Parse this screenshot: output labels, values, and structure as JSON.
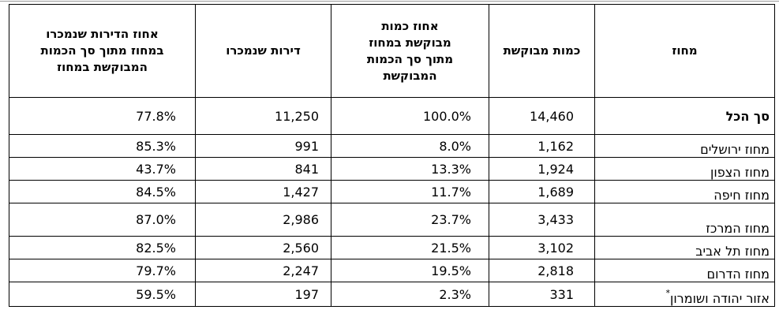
{
  "headers": {
    "pct_sold": [
      "אחוז הדירות שנמכרו",
      "במחוז מתוך סך הכמות",
      "המבוקשת במחוז"
    ],
    "sold": [
      "דירות שנמכרו"
    ],
    "pct_requested": [
      "אחוז כמות",
      "מבוקשת במחוז",
      "מתוך סך הכמות",
      "המבוקשת"
    ],
    "requested": [
      "כמות מבוקשת"
    ],
    "district": [
      "מחוז"
    ]
  },
  "rows": [
    {
      "district": "סך הכל",
      "requested": "14,460",
      "pct_requested": "100.0%",
      "sold": "11,250",
      "pct_sold": "77.8%"
    },
    {
      "district": "מחוז ירושלים",
      "requested": "1,162",
      "pct_requested": "8.0%",
      "sold": "991",
      "pct_sold": "85.3%"
    },
    {
      "district": "מחוז הצפון",
      "requested": "1,924",
      "pct_requested": "13.3%",
      "sold": "841",
      "pct_sold": "43.7%"
    },
    {
      "district": "מחוז חיפה",
      "requested": "1,689",
      "pct_requested": "11.7%",
      "sold": "1,427",
      "pct_sold": "84.5%"
    },
    {
      "district": "מחוז המרכז",
      "requested": "3,433",
      "pct_requested": "23.7%",
      "sold": "2,986",
      "pct_sold": "87.0%"
    },
    {
      "district": "מחוז תל אביב",
      "requested": "3,102",
      "pct_requested": "21.5%",
      "sold": "2,560",
      "pct_sold": "82.5%"
    },
    {
      "district": "מחוז הדרום",
      "requested": "2,818",
      "pct_requested": "19.5%",
      "sold": "2,247",
      "pct_sold": "79.7%"
    },
    {
      "district": "אזור יהודה ושומרון",
      "footnote_mark": "*",
      "requested": "331",
      "pct_requested": "2.3%",
      "sold": "197",
      "pct_sold": "59.5%"
    }
  ]
}
